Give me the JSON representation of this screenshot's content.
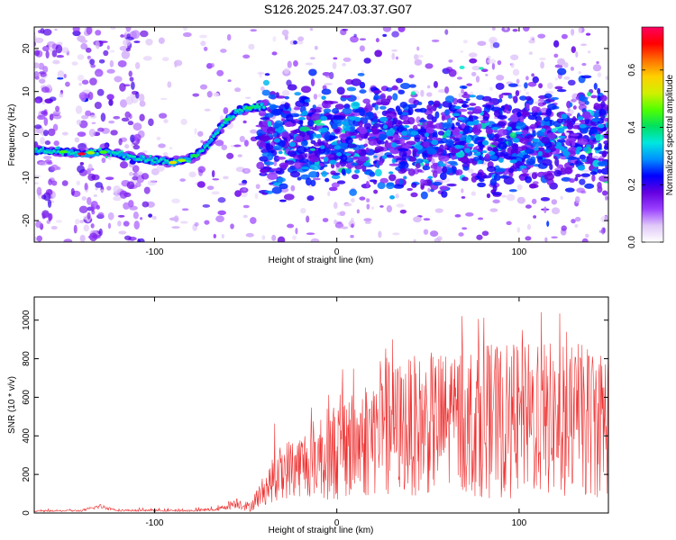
{
  "title": "S126.2025.247.03.37.G07",
  "chart_data": [
    {
      "type": "heatmap",
      "xlabel": "Height of straight line (km)",
      "ylabel": "Frequency (Hz)",
      "xlim": [
        -166,
        149
      ],
      "ylim": [
        -25,
        25
      ],
      "x_ticks": [
        -100,
        0,
        100
      ],
      "y_ticks": [
        -20,
        -10,
        0,
        10,
        20
      ],
      "colorbar": {
        "label": "Normalized spectral amplitude",
        "range": [
          0,
          0.75
        ],
        "ticks": [
          0.0,
          0.2,
          0.4,
          0.6
        ],
        "colors": [
          "#ffffff",
          "#e0c8f8",
          "#9a40ff",
          "#6400e0",
          "#0000ff",
          "#0090ff",
          "#00e8e0",
          "#00e060",
          "#50ff00",
          "#d0f000",
          "#ffd000",
          "#ff7000",
          "#ff0000",
          "#ff0060"
        ]
      },
      "ridge": {
        "x": [
          -166,
          -150,
          -140,
          -130,
          -120,
          -110,
          -100,
          -90,
          -80,
          -75,
          -70,
          -65,
          -60,
          -55,
          -50,
          -45,
          -40
        ],
        "y": [
          -3.5,
          -4,
          -4.5,
          -4,
          -4.5,
          -5.5,
          -6,
          -6.5,
          -5.5,
          -4,
          -2,
          1,
          3.5,
          5,
          6,
          6.5,
          6.5
        ]
      }
    },
    {
      "type": "line",
      "xlabel": "Height of straight line (km)",
      "ylabel": "SNR (10 * v/v)",
      "xlim": [
        -166,
        149
      ],
      "ylim": [
        0,
        1120
      ],
      "x_ticks": [
        -100,
        0,
        100
      ],
      "y_ticks": [
        0,
        200,
        400,
        600,
        800,
        1000
      ],
      "color": "#ee3333",
      "envelope": {
        "x": [
          -166,
          -140,
          -130,
          -120,
          -80,
          -65,
          -55,
          -48,
          -40,
          -30,
          -20,
          -10,
          0,
          10,
          20,
          30,
          40,
          50,
          60,
          70,
          80,
          90,
          100,
          110,
          120,
          130,
          140,
          149
        ],
        "mean": [
          10,
          12,
          35,
          14,
          12,
          20,
          55,
          30,
          120,
          220,
          250,
          300,
          320,
          360,
          410,
          440,
          450,
          460,
          470,
          480,
          480,
          470,
          480,
          490,
          480,
          470,
          480,
          480
        ],
        "spread": [
          4,
          5,
          12,
          5,
          5,
          10,
          30,
          25,
          80,
          150,
          170,
          220,
          260,
          300,
          330,
          350,
          360,
          370,
          380,
          390,
          400,
          400,
          400,
          410,
          400,
          400,
          400,
          400
        ],
        "peak": [
          20,
          25,
          70,
          28,
          25,
          45,
          140,
          80,
          420,
          520,
          580,
          640,
          760,
          900,
          870,
          920,
          860,
          990,
          930,
          1080,
          1060,
          1000,
          1050,
          1080,
          1040,
          1100,
          1060,
          900
        ]
      }
    }
  ]
}
